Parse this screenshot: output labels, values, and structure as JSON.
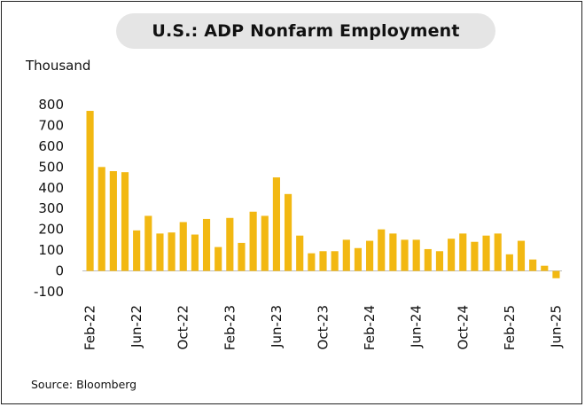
{
  "chart_data": {
    "type": "bar",
    "title": "U.S.: ADP Nonfarm Employment",
    "unit_label": "Thousand",
    "source": "Source: Bloomberg",
    "ylim": [
      -100,
      800
    ],
    "yticks": [
      -100,
      0,
      100,
      200,
      300,
      400,
      500,
      600,
      700,
      800
    ],
    "grid": false,
    "bar_color": "#f2b812",
    "x_tick_labels": [
      "Feb-22",
      "Jun-22",
      "Oct-22",
      "Feb-23",
      "Jun-23",
      "Oct-23",
      "Feb-24",
      "Jun-24",
      "Oct-24",
      "Feb-25",
      "Jun-25"
    ],
    "categories": [
      "Feb-22",
      "Mar-22",
      "Apr-22",
      "May-22",
      "Jun-22",
      "Jul-22",
      "Aug-22",
      "Sep-22",
      "Oct-22",
      "Nov-22",
      "Dec-22",
      "Jan-23",
      "Feb-23",
      "Mar-23",
      "Apr-23",
      "May-23",
      "Jun-23",
      "Jul-23",
      "Aug-23",
      "Sep-23",
      "Oct-23",
      "Nov-23",
      "Dec-23",
      "Jan-24",
      "Feb-24",
      "Mar-24",
      "Apr-24",
      "May-24",
      "Jun-24",
      "Jul-24",
      "Aug-24",
      "Sep-24",
      "Oct-24",
      "Nov-24",
      "Dec-24",
      "Jan-25",
      "Feb-25",
      "Mar-25",
      "Apr-25",
      "May-25",
      "Jun-25"
    ],
    "values": [
      770,
      500,
      480,
      475,
      195,
      265,
      180,
      185,
      235,
      175,
      250,
      115,
      255,
      135,
      285,
      265,
      450,
      370,
      170,
      85,
      95,
      95,
      150,
      110,
      145,
      200,
      180,
      150,
      150,
      105,
      95,
      155,
      180,
      140,
      170,
      180,
      80,
      145,
      55,
      25,
      -35
    ]
  }
}
